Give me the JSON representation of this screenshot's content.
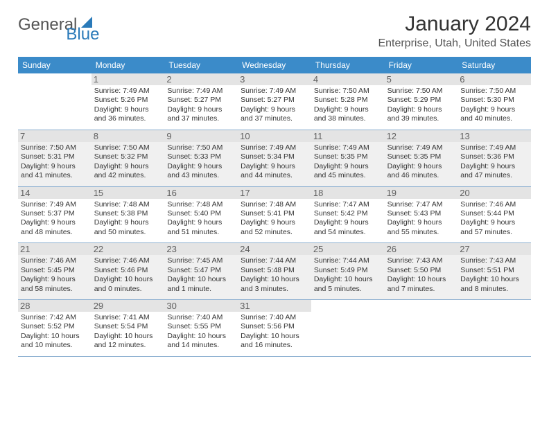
{
  "logo": {
    "text1": "General",
    "text2": "Blue"
  },
  "title": "January 2024",
  "location": "Enterprise, Utah, United States",
  "header_bg": "#3b8bc9",
  "weekdays": [
    "Sunday",
    "Monday",
    "Tuesday",
    "Wednesday",
    "Thursday",
    "Friday",
    "Saturday"
  ],
  "weeks": [
    [
      null,
      {
        "n": "1",
        "sr": "7:49 AM",
        "ss": "5:26 PM",
        "dl": "9 hours and 36 minutes."
      },
      {
        "n": "2",
        "sr": "7:49 AM",
        "ss": "5:27 PM",
        "dl": "9 hours and 37 minutes."
      },
      {
        "n": "3",
        "sr": "7:49 AM",
        "ss": "5:27 PM",
        "dl": "9 hours and 37 minutes."
      },
      {
        "n": "4",
        "sr": "7:50 AM",
        "ss": "5:28 PM",
        "dl": "9 hours and 38 minutes."
      },
      {
        "n": "5",
        "sr": "7:50 AM",
        "ss": "5:29 PM",
        "dl": "9 hours and 39 minutes."
      },
      {
        "n": "6",
        "sr": "7:50 AM",
        "ss": "5:30 PM",
        "dl": "9 hours and 40 minutes."
      }
    ],
    [
      {
        "n": "7",
        "sr": "7:50 AM",
        "ss": "5:31 PM",
        "dl": "9 hours and 41 minutes."
      },
      {
        "n": "8",
        "sr": "7:50 AM",
        "ss": "5:32 PM",
        "dl": "9 hours and 42 minutes."
      },
      {
        "n": "9",
        "sr": "7:50 AM",
        "ss": "5:33 PM",
        "dl": "9 hours and 43 minutes."
      },
      {
        "n": "10",
        "sr": "7:49 AM",
        "ss": "5:34 PM",
        "dl": "9 hours and 44 minutes."
      },
      {
        "n": "11",
        "sr": "7:49 AM",
        "ss": "5:35 PM",
        "dl": "9 hours and 45 minutes."
      },
      {
        "n": "12",
        "sr": "7:49 AM",
        "ss": "5:35 PM",
        "dl": "9 hours and 46 minutes."
      },
      {
        "n": "13",
        "sr": "7:49 AM",
        "ss": "5:36 PM",
        "dl": "9 hours and 47 minutes."
      }
    ],
    [
      {
        "n": "14",
        "sr": "7:49 AM",
        "ss": "5:37 PM",
        "dl": "9 hours and 48 minutes."
      },
      {
        "n": "15",
        "sr": "7:48 AM",
        "ss": "5:38 PM",
        "dl": "9 hours and 50 minutes."
      },
      {
        "n": "16",
        "sr": "7:48 AM",
        "ss": "5:40 PM",
        "dl": "9 hours and 51 minutes."
      },
      {
        "n": "17",
        "sr": "7:48 AM",
        "ss": "5:41 PM",
        "dl": "9 hours and 52 minutes."
      },
      {
        "n": "18",
        "sr": "7:47 AM",
        "ss": "5:42 PM",
        "dl": "9 hours and 54 minutes."
      },
      {
        "n": "19",
        "sr": "7:47 AM",
        "ss": "5:43 PM",
        "dl": "9 hours and 55 minutes."
      },
      {
        "n": "20",
        "sr": "7:46 AM",
        "ss": "5:44 PM",
        "dl": "9 hours and 57 minutes."
      }
    ],
    [
      {
        "n": "21",
        "sr": "7:46 AM",
        "ss": "5:45 PM",
        "dl": "9 hours and 58 minutes."
      },
      {
        "n": "22",
        "sr": "7:46 AM",
        "ss": "5:46 PM",
        "dl": "10 hours and 0 minutes."
      },
      {
        "n": "23",
        "sr": "7:45 AM",
        "ss": "5:47 PM",
        "dl": "10 hours and 1 minute."
      },
      {
        "n": "24",
        "sr": "7:44 AM",
        "ss": "5:48 PM",
        "dl": "10 hours and 3 minutes."
      },
      {
        "n": "25",
        "sr": "7:44 AM",
        "ss": "5:49 PM",
        "dl": "10 hours and 5 minutes."
      },
      {
        "n": "26",
        "sr": "7:43 AM",
        "ss": "5:50 PM",
        "dl": "10 hours and 7 minutes."
      },
      {
        "n": "27",
        "sr": "7:43 AM",
        "ss": "5:51 PM",
        "dl": "10 hours and 8 minutes."
      }
    ],
    [
      {
        "n": "28",
        "sr": "7:42 AM",
        "ss": "5:52 PM",
        "dl": "10 hours and 10 minutes."
      },
      {
        "n": "29",
        "sr": "7:41 AM",
        "ss": "5:54 PM",
        "dl": "10 hours and 12 minutes."
      },
      {
        "n": "30",
        "sr": "7:40 AM",
        "ss": "5:55 PM",
        "dl": "10 hours and 14 minutes."
      },
      {
        "n": "31",
        "sr": "7:40 AM",
        "ss": "5:56 PM",
        "dl": "10 hours and 16 minutes."
      },
      null,
      null,
      null
    ]
  ],
  "labels": {
    "sunrise": "Sunrise:",
    "sunset": "Sunset:",
    "daylight": "Daylight:"
  }
}
